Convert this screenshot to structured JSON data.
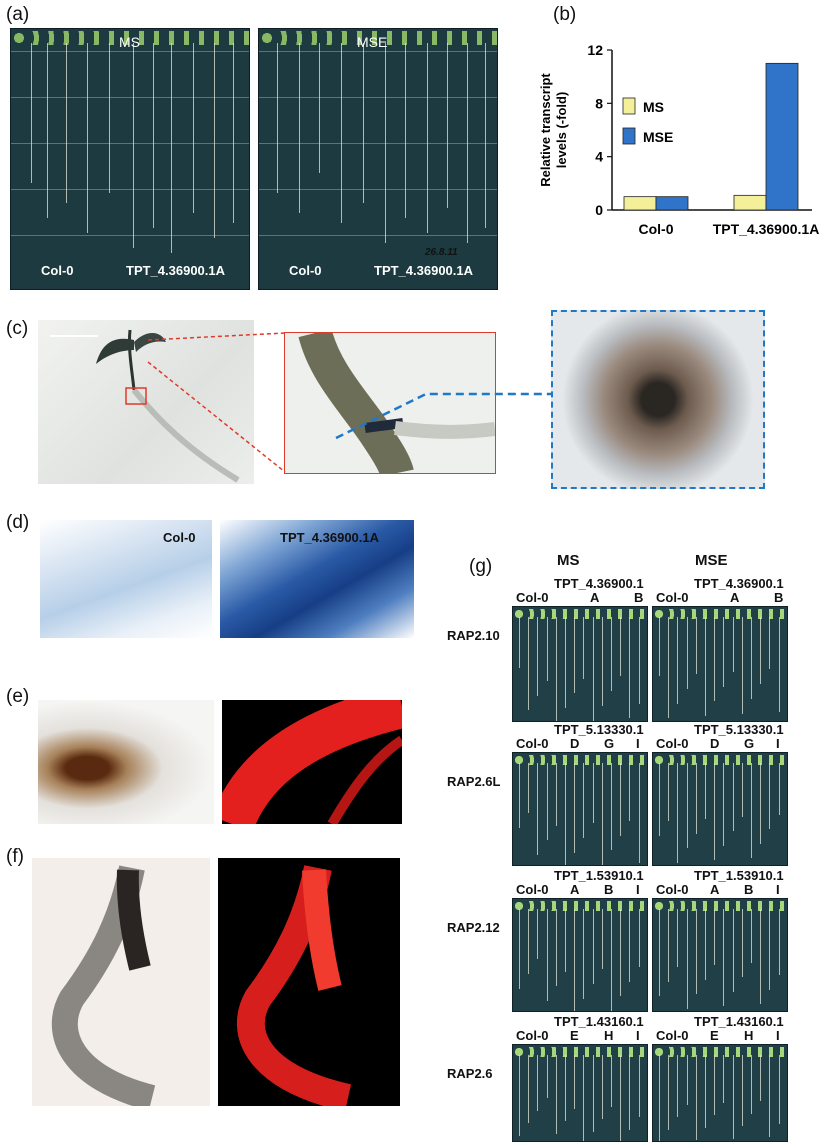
{
  "panels": {
    "a": {
      "label": "(a)",
      "plate_labels": [
        "MS",
        "MSE"
      ],
      "genotypes": [
        "Col-0",
        "TPT_4.36900.1A"
      ],
      "handwriting": "26.8.11"
    },
    "b": {
      "label": "(b)"
    },
    "c": {
      "label": "(c)"
    },
    "d": {
      "label": "(d)",
      "genotypes": [
        "Col-0",
        "TPT_4.36900.1A"
      ]
    },
    "e": {
      "label": "(e)"
    },
    "f": {
      "label": "(f)"
    },
    "g": {
      "label": "(g)",
      "col_headers": [
        "MS",
        "MSE"
      ],
      "rows": [
        {
          "gene": "RAP2.10",
          "line": "TPT_4.36900.1",
          "letters": [
            "A",
            "B"
          ],
          "col0": "Col-0"
        },
        {
          "gene": "RAP2.6L",
          "line": "TPT_5.13330.1",
          "letters": [
            "D",
            "G",
            "I"
          ],
          "col0": "Col-0"
        },
        {
          "gene": "RAP2.12",
          "line": "TPT_1.53910.1",
          "letters": [
            "A",
            "B",
            "I"
          ],
          "col0": "Col-0"
        },
        {
          "gene": "RAP2.6",
          "line": "TPT_1.43160.1",
          "letters": [
            "E",
            "H",
            "I"
          ],
          "col0": "Col-0"
        }
      ]
    }
  },
  "chart_data": {
    "type": "bar",
    "categories": [
      "Col-0",
      "TPT_4.36900.1A"
    ],
    "series": [
      {
        "name": "MS",
        "color": "#f4f09a",
        "values": [
          1.0,
          1.1
        ]
      },
      {
        "name": "MSE",
        "color": "#2f74c8",
        "values": [
          1.0,
          11.0
        ]
      }
    ],
    "ylabel": "Relative transcript levels (-fold)",
    "ylabel_lines": [
      "Relative transcript",
      "levels (-fold)"
    ],
    "yticks": [
      0,
      4,
      8,
      12
    ],
    "ylim": [
      0,
      12
    ],
    "legend": "upper-left"
  }
}
